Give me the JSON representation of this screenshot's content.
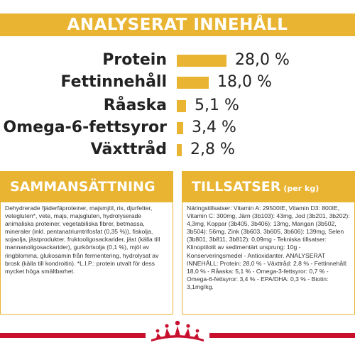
{
  "header": {
    "title": "ANALYSERAT INNEHÅLL"
  },
  "nutrients": [
    {
      "label": "Protein",
      "value": "28,0 %",
      "fraction": 0.28
    },
    {
      "label": "Fettinnehåll",
      "value": "18,0 %",
      "fraction": 0.18
    },
    {
      "label": "Råaska",
      "value": "5,1 %",
      "fraction": 0.051
    },
    {
      "label": "Omega-6-fettsyror",
      "value": "3,4 %",
      "fraction": 0.034
    },
    {
      "label": "Växttråd",
      "value": "2,8 %",
      "fraction": 0.028
    }
  ],
  "composition": {
    "title": "SAMMANSÄTTNING",
    "text": "Dehydrerade fjäderfäproteiner, majsmjöl, ris, djurfetter, vetegluten*, vete, majs, majsgluten, hydrolyserade animaliska proteiner, vegetabiliska fibrer, betmassa, mineraler (inkl. pentanatriumtrifosfat (0,35 %)), fiskolja, sojaolja, jästprodukter, fruktooligosackarider, jäst (källa till mannanoligosackarider), gurkörtsolja (0,1 %), mjöl av ringblomma, glukosamin från fermentering, hydrolysat av brosk (källa till kondroitin). *L.I.P.: protein utvalt för dess mycket höga smältbarhet."
  },
  "additives": {
    "title": "TILLSATSER",
    "subtitle": "(per kg)",
    "text": "Näringstillsatser: Vitamin A: 29500IE, Vitamin D3: 800IE, Vitamin C: 300mg, Järn (3b103): 43mg, Jod (3b201, 3b202): 4,3mg, Koppar (3b405, 3b406): 13mg, Mangan (3b502, 3b504): 56mg, Zink (3b603, 3b605, 3b606): 139mg, Selen (3b801, 3b811, 3b812): 0,09mg - Tekniska tillsatser: Klinoptilolit av sedimentärt ursprung: 10g - Konserveringsmedel - Antioxidanter. ANALYSERAT INNEHÅLL: Protein: 28,0 % - Växttråd: 2,8 % - Fettinnehåll: 18,0 % - Råaska: 5,1 % - Omega-3-fettsyror: 0,7 % - Omega-6-fettsyror: 3,4 % - EPA/DHA: 0,3 % - Biotin: 3,1mg/kg."
  },
  "colors": {
    "accent": "#E9B431",
    "brand_red": "#C8102E"
  },
  "logo": {
    "name": "crown-logo"
  }
}
